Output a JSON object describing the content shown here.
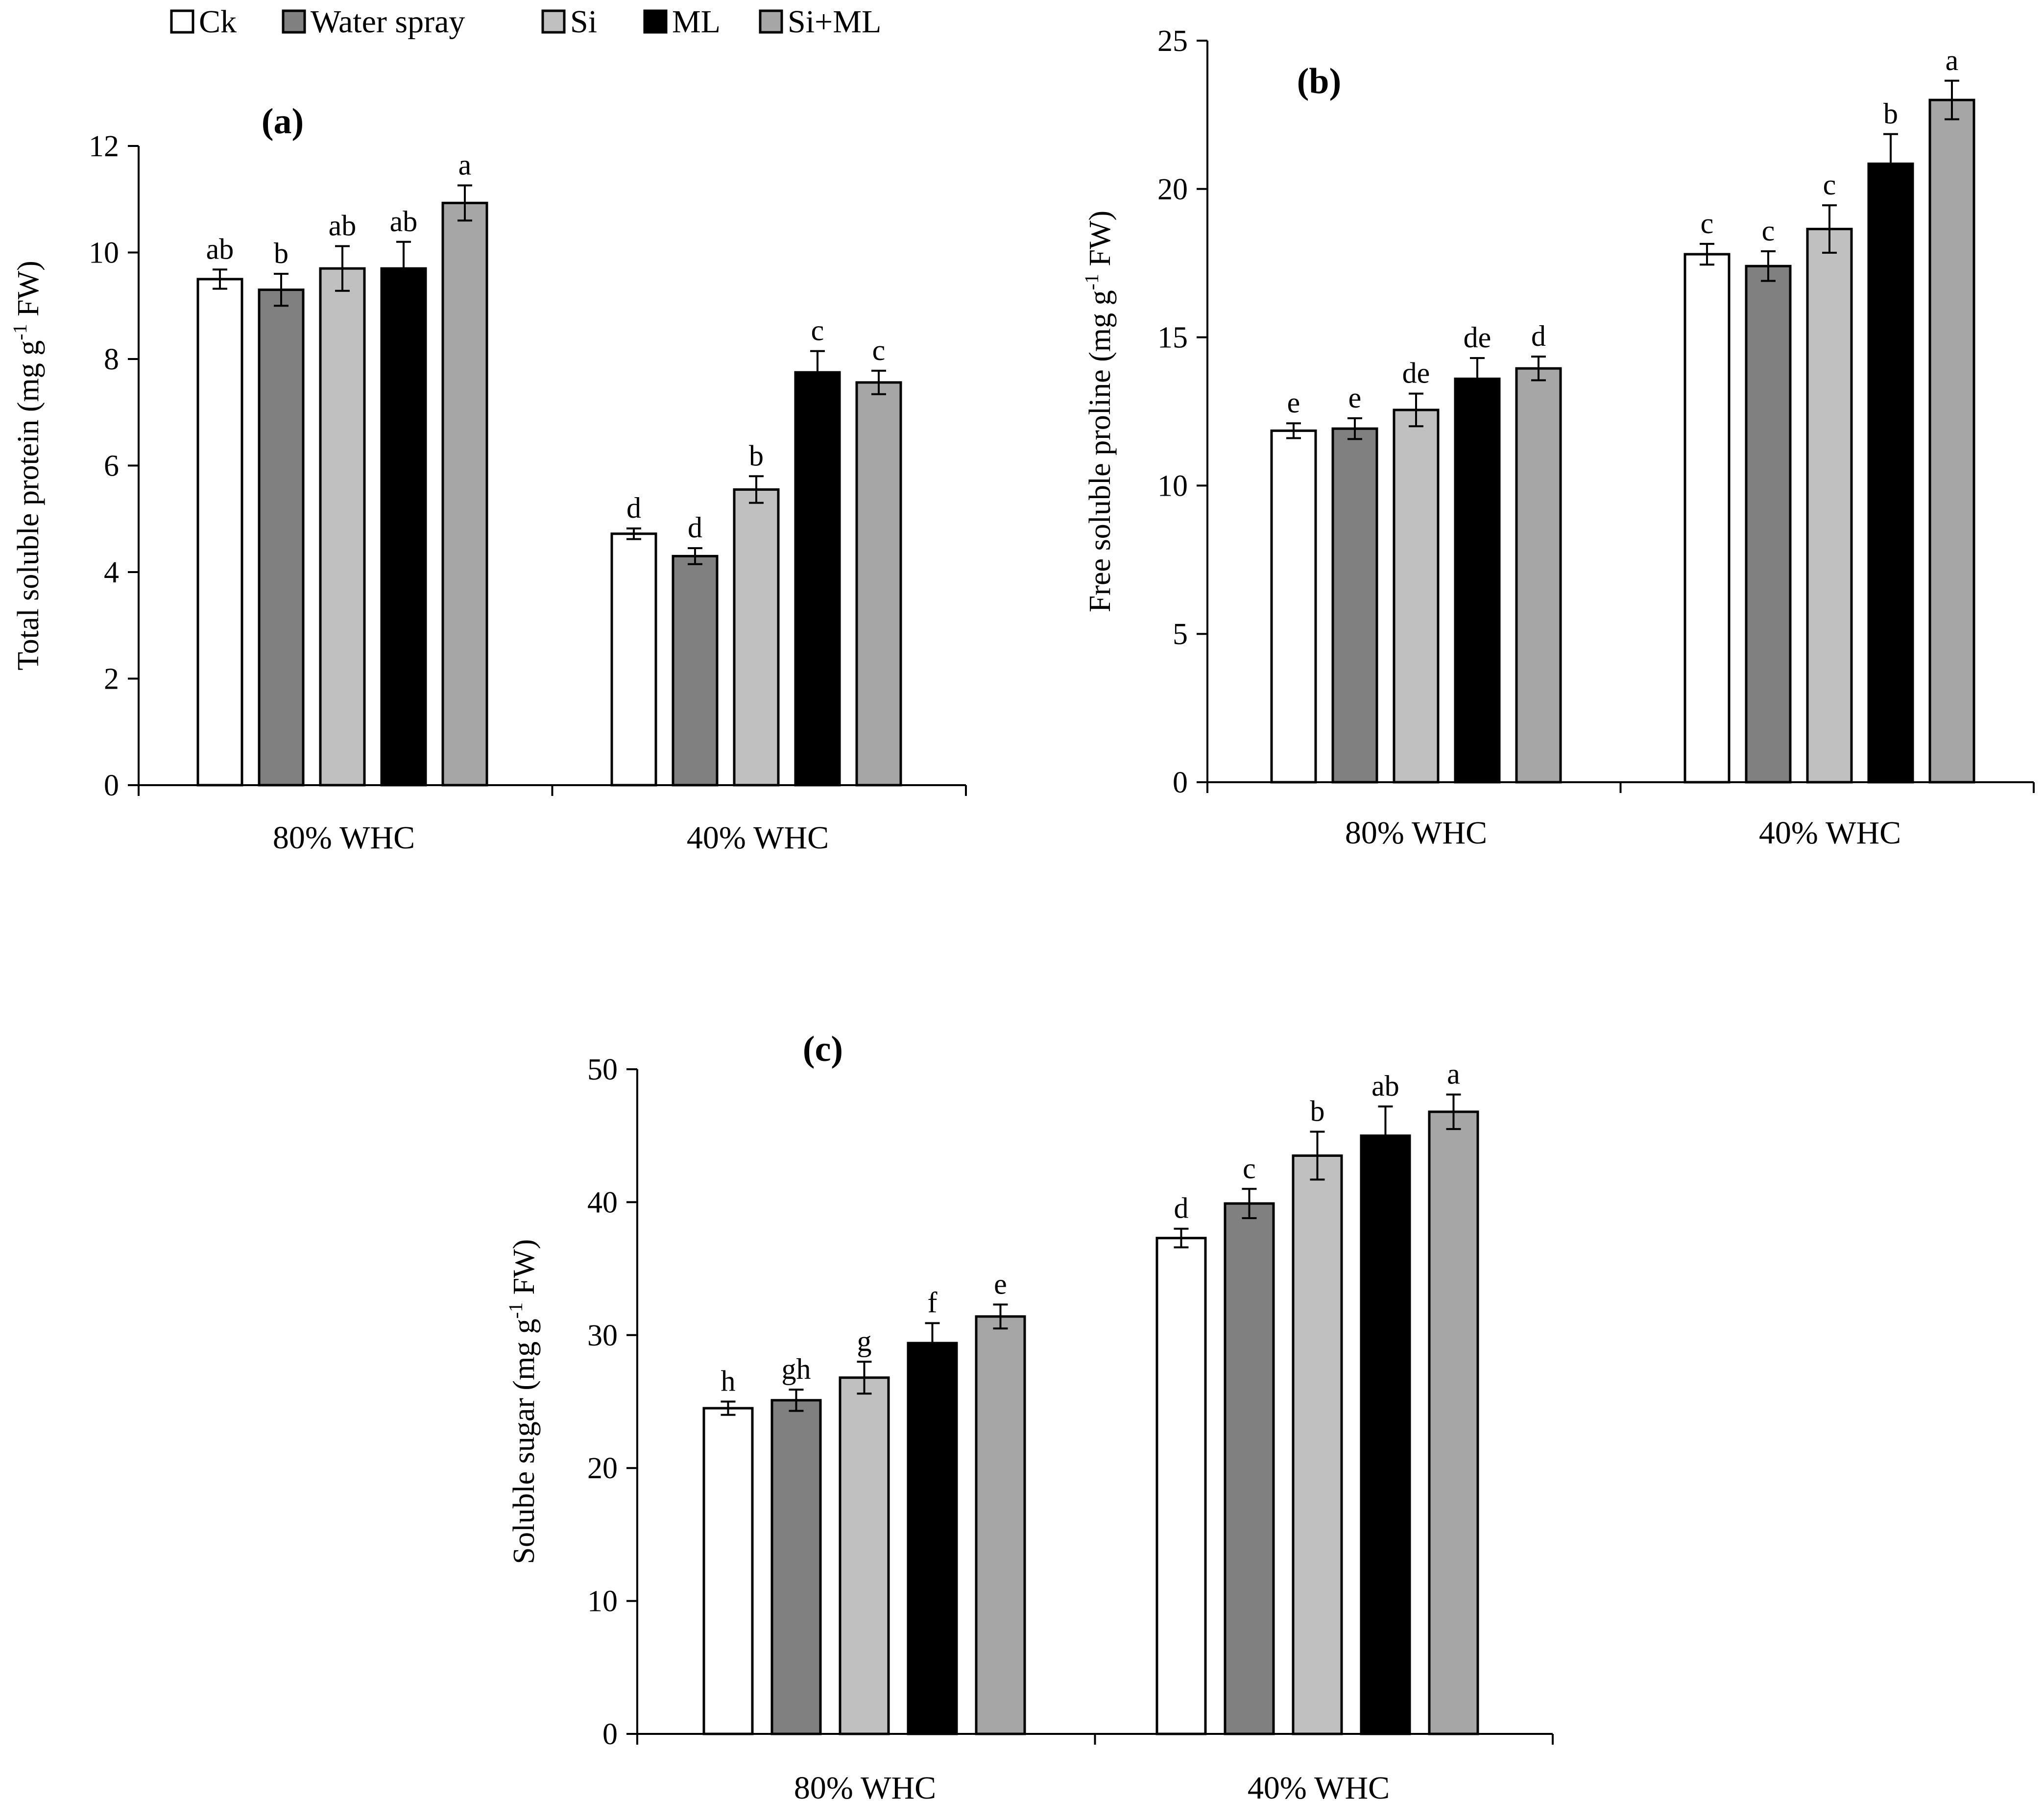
{
  "legend": {
    "items": [
      {
        "label": "Ck",
        "color": "#ffffff"
      },
      {
        "label": "Water spray",
        "color": "#808080"
      },
      {
        "label": "Si",
        "color": "#c0c0c0"
      },
      {
        "label": "ML",
        "color": "#000000"
      },
      {
        "label": "Si+ML",
        "color": "#a6a6a6"
      }
    ]
  },
  "chart_data": [
    {
      "type": "bar",
      "title": "(a)",
      "ylabel": "Total soluble protein  (mg g-1 FW)",
      "ylabel_parts": [
        "Total soluble protein  (mg g",
        "-1",
        " FW)"
      ],
      "ylim": [
        0,
        12
      ],
      "yticks": [
        0,
        2,
        4,
        6,
        8,
        10,
        12
      ],
      "categories": [
        "80% WHC",
        "40% WHC"
      ],
      "series": [
        {
          "name": "Ck",
          "values": [
            9.5,
            4.72
          ],
          "errors": [
            0.18,
            0.1
          ],
          "letters": [
            "ab",
            "d"
          ]
        },
        {
          "name": "Water spray",
          "values": [
            9.3,
            4.3
          ],
          "errors": [
            0.3,
            0.15
          ],
          "letters": [
            "b",
            "d"
          ]
        },
        {
          "name": "Si",
          "values": [
            9.7,
            5.55
          ],
          "errors": [
            0.42,
            0.25
          ],
          "letters": [
            "ab",
            "b"
          ]
        },
        {
          "name": "ML",
          "values": [
            9.7,
            7.75
          ],
          "errors": [
            0.5,
            0.4
          ],
          "letters": [
            "ab",
            "c"
          ]
        },
        {
          "name": "Si+ML",
          "values": [
            10.93,
            7.56
          ],
          "errors": [
            0.33,
            0.22
          ],
          "letters": [
            "a",
            "c"
          ]
        }
      ]
    },
    {
      "type": "bar",
      "title": "(b)",
      "ylabel": "Free  soluble proline  (mg g-1 FW)",
      "ylabel_parts": [
        "Free  soluble proline  (mg g",
        "-1",
        " FW)"
      ],
      "ylim": [
        0,
        25
      ],
      "yticks": [
        0,
        5,
        10,
        15,
        20,
        25
      ],
      "categories": [
        "80% WHC",
        "40% WHC"
      ],
      "series": [
        {
          "name": "Ck",
          "values": [
            11.85,
            17.8
          ],
          "errors": [
            0.25,
            0.35
          ],
          "letters": [
            "e",
            "c"
          ]
        },
        {
          "name": "Water spray",
          "values": [
            11.92,
            17.4
          ],
          "errors": [
            0.35,
            0.5
          ],
          "letters": [
            "e",
            "c"
          ]
        },
        {
          "name": "Si",
          "values": [
            12.55,
            18.65
          ],
          "errors": [
            0.55,
            0.8
          ],
          "letters": [
            "de",
            "c"
          ]
        },
        {
          "name": "ML",
          "values": [
            13.6,
            20.85
          ],
          "errors": [
            0.7,
            1.0
          ],
          "letters": [
            "de",
            "b"
          ]
        },
        {
          "name": "Si+ML",
          "values": [
            13.95,
            23.0
          ],
          "errors": [
            0.4,
            0.65
          ],
          "letters": [
            "d",
            "a"
          ]
        }
      ]
    },
    {
      "type": "bar",
      "title": "(c)",
      "ylabel": "Soluble sugar  (mg g-1 FW)",
      "ylabel_parts": [
        "Soluble sugar  (mg g",
        "-1",
        " FW)"
      ],
      "ylim": [
        0,
        50
      ],
      "yticks": [
        0,
        10,
        20,
        30,
        40,
        50
      ],
      "categories": [
        "80% WHC",
        "40% WHC"
      ],
      "series": [
        {
          "name": "Ck",
          "values": [
            24.5,
            37.3
          ],
          "errors": [
            0.5,
            0.7
          ],
          "letters": [
            "h",
            "d"
          ]
        },
        {
          "name": "Water spray",
          "values": [
            25.1,
            39.9
          ],
          "errors": [
            0.8,
            1.1
          ],
          "letters": [
            "gh",
            "c"
          ]
        },
        {
          "name": "Si",
          "values": [
            26.8,
            43.5
          ],
          "errors": [
            1.2,
            1.8
          ],
          "letters": [
            "g",
            "b"
          ]
        },
        {
          "name": "ML",
          "values": [
            29.4,
            45.0
          ],
          "errors": [
            1.5,
            2.2
          ],
          "letters": [
            "f",
            "ab"
          ]
        },
        {
          "name": "Si+ML",
          "values": [
            31.4,
            46.8
          ],
          "errors": [
            0.9,
            1.3
          ],
          "letters": [
            "e",
            "a"
          ]
        }
      ]
    }
  ]
}
